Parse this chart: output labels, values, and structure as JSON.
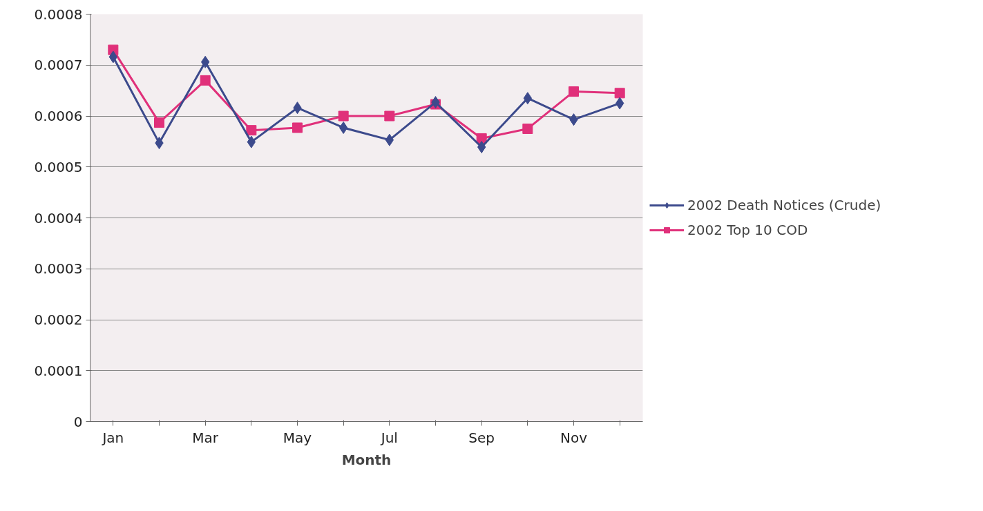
{
  "chart_data": {
    "type": "line",
    "xlabel": "Month",
    "categories": [
      "Jan",
      null,
      "Mar",
      null,
      "May",
      null,
      "Jul",
      null,
      "Sep",
      null,
      "Nov",
      null
    ],
    "series": [
      {
        "name": "2002 Death Notices (Crude)",
        "color": "#3c4a8c",
        "marker": "diamond",
        "values": [
          0.000716,
          0.000547,
          0.000706,
          0.000549,
          0.000616,
          0.000577,
          0.000553,
          0.000627,
          0.000539,
          0.000635,
          0.000593,
          0.000625
        ]
      },
      {
        "name": "2002 Top 10 COD",
        "color": "#e0307a",
        "marker": "square",
        "values": [
          0.00073,
          0.000587,
          0.00067,
          0.000572,
          0.000577,
          0.0006,
          0.0006,
          0.000623,
          0.000556,
          0.000575,
          0.000648,
          0.000645
        ]
      }
    ],
    "ylim": [
      0,
      0.0008
    ],
    "yticks": [
      0,
      0.0001,
      0.0002,
      0.0003,
      0.0004,
      0.0005,
      0.0006,
      0.0007,
      0.0008
    ],
    "grid": "y",
    "legend": "right",
    "line_style": "solid"
  }
}
